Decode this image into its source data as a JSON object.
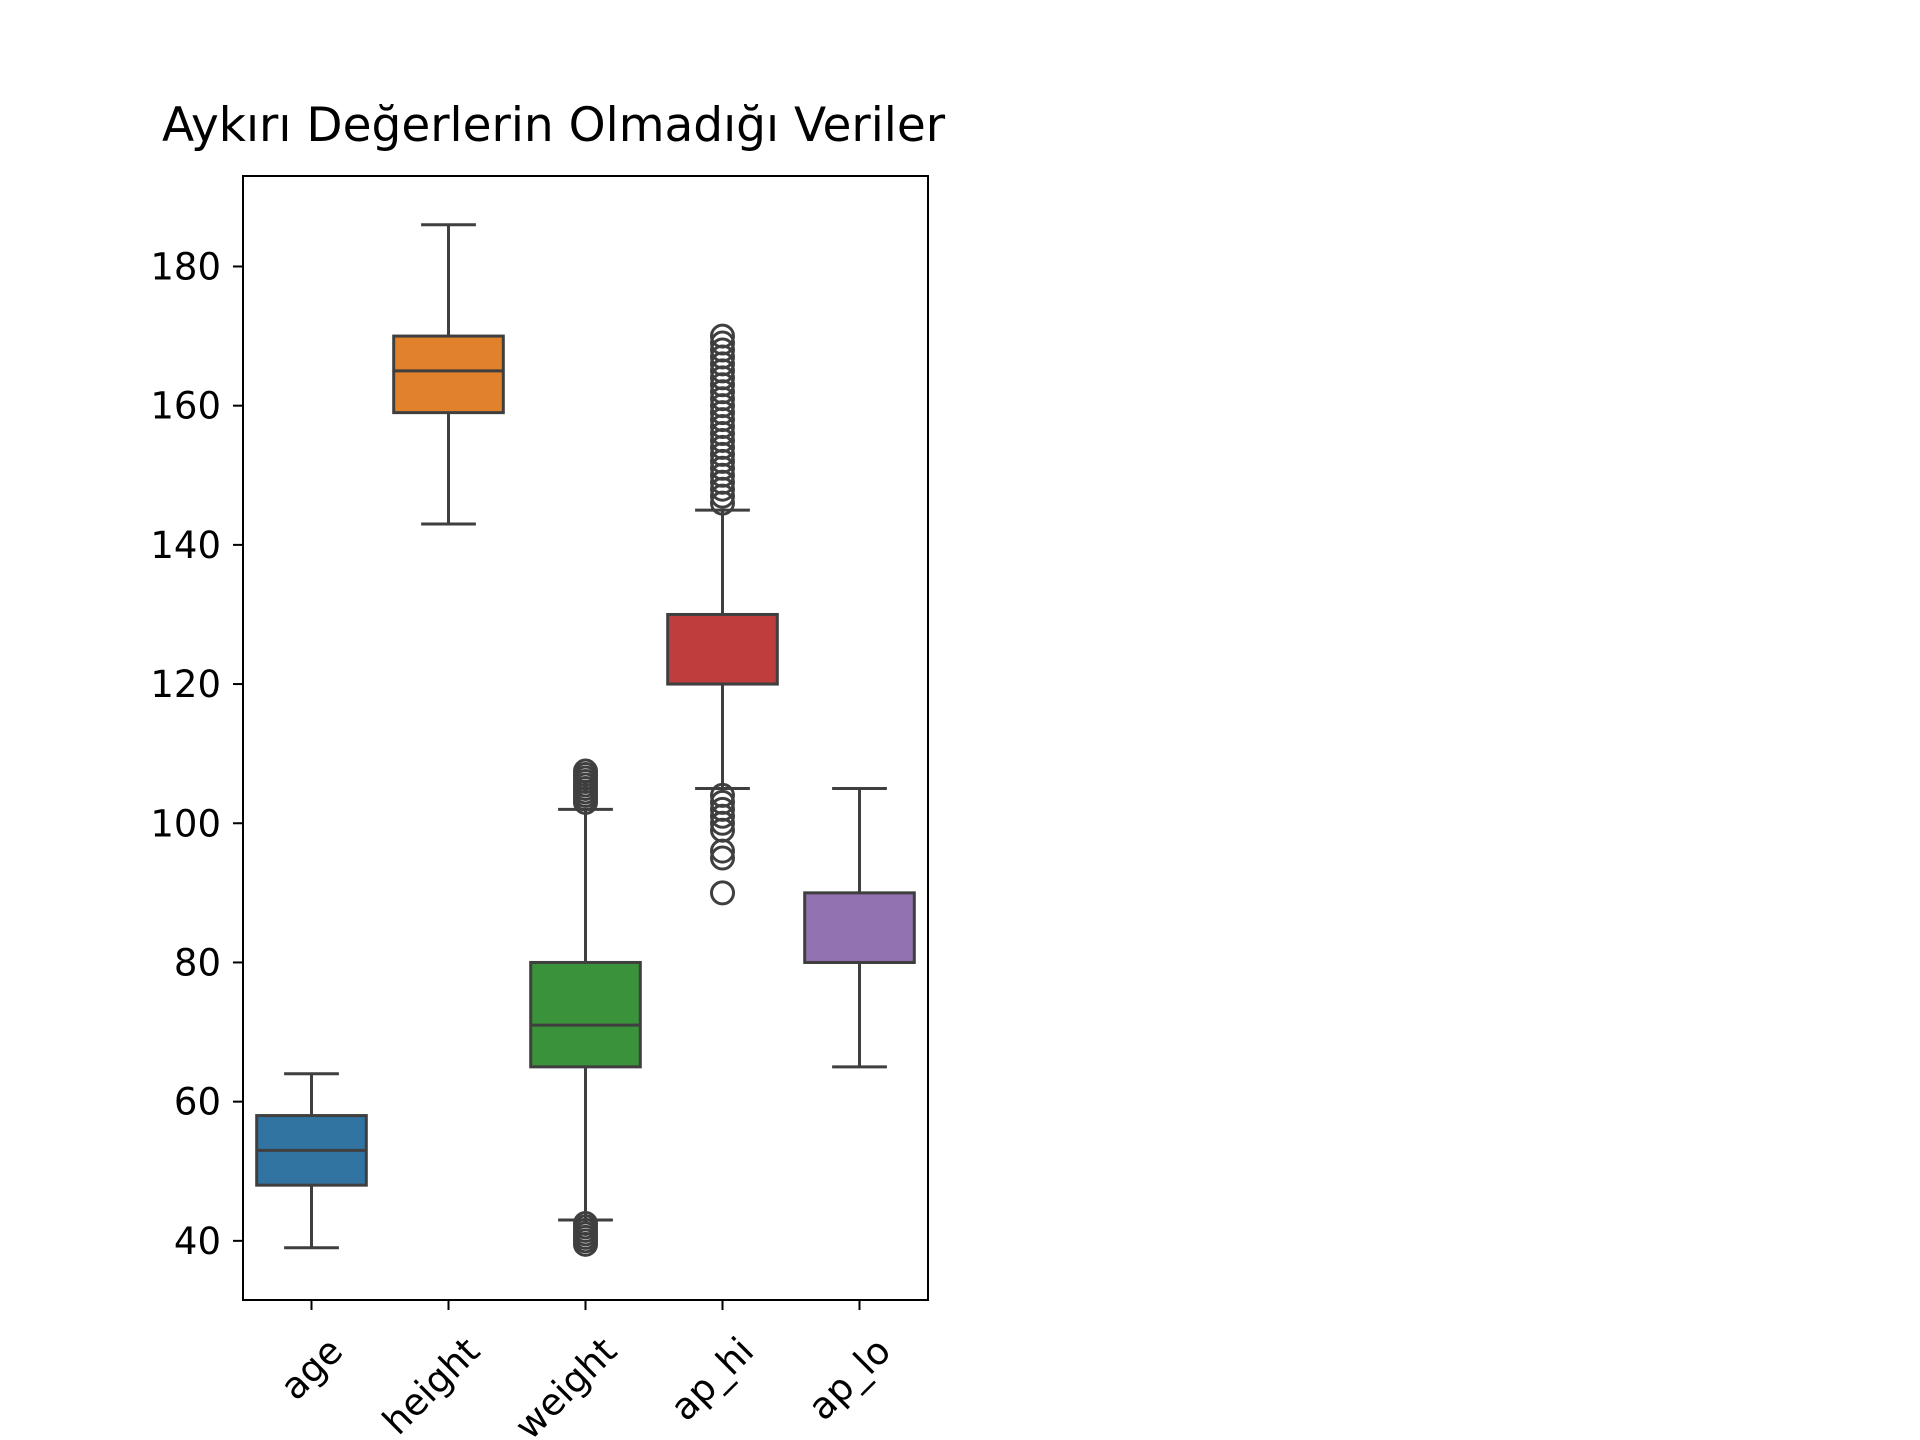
{
  "chart_data": {
    "type": "box",
    "title": "Aykırı Değerlerin Olmadığı Veriler",
    "xlabel": "",
    "ylabel": "",
    "ylim": [
      31.5,
      193
    ],
    "yticks": [
      40,
      60,
      80,
      100,
      120,
      140,
      160,
      180
    ],
    "grid": false,
    "legend": "none",
    "categories": [
      "age",
      "height",
      "weight",
      "ap_hi",
      "ap_lo"
    ],
    "colors": [
      "#3274a1",
      "#e1812c",
      "#3a923a",
      "#c03d3e",
      "#9372b2"
    ],
    "edge_color": "#3f3f3f",
    "boxes": [
      {
        "name": "age",
        "whislo": 39,
        "q1": 48,
        "med": 53,
        "q3": 58,
        "whishi": 64,
        "fliers": []
      },
      {
        "name": "height",
        "whislo": 143,
        "q1": 159,
        "med": 165,
        "q3": 170,
        "whishi": 186,
        "fliers": []
      },
      {
        "name": "weight",
        "whislo": 43,
        "q1": 65,
        "med": 71,
        "q3": 80,
        "whishi": 102,
        "fliers": [
          39.5,
          40,
          40.5,
          41,
          41.5,
          42,
          42.5,
          103,
          103.5,
          104,
          104.5,
          105,
          105.5,
          106,
          106.5,
          107,
          107.5
        ]
      },
      {
        "name": "ap_hi",
        "whislo": 105,
        "q1": 120,
        "med": 120,
        "q3": 130,
        "whishi": 145,
        "fliers": [
          90,
          95,
          96,
          99,
          100,
          101,
          102,
          103,
          104,
          146,
          147,
          148,
          149,
          150,
          151,
          152,
          153,
          154,
          155,
          156,
          157,
          158,
          159,
          160,
          161,
          162,
          163,
          164,
          165,
          166,
          167,
          168,
          169,
          170
        ]
      },
      {
        "name": "ap_lo",
        "whislo": 65,
        "q1": 80,
        "med": 80,
        "q3": 90,
        "whishi": 105,
        "fliers": []
      }
    ]
  }
}
